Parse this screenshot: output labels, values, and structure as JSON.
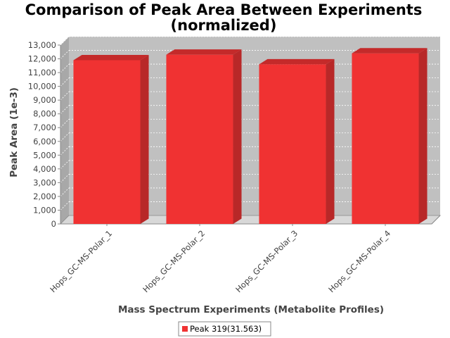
{
  "chart_data": {
    "type": "bar",
    "title": "Comparison of Peak Area Between Experiments",
    "subtitle": "(normalized)",
    "xlabel": "Mass Spectrum Experiments (Metabolite Profiles)",
    "ylabel": "Peak Area (1e-3)",
    "categories": [
      "Hops_GC-MS-Polar_1",
      "Hops_GC-MS-Polar_2",
      "Hops_GC-MS-Polar_3",
      "Hops_GC-MS-Polar_4"
    ],
    "series": [
      {
        "name": "Peak 319(31.563)",
        "values": [
          11900,
          12300,
          11600,
          12400
        ],
        "color": "#f03232"
      }
    ],
    "ylim": [
      0,
      13000
    ],
    "yticks": [
      0,
      1000,
      2000,
      3000,
      4000,
      5000,
      6000,
      7000,
      8000,
      9000,
      10000,
      11000,
      12000,
      13000
    ],
    "ytick_labels": [
      "0",
      "1,000",
      "2,000",
      "3,000",
      "4,000",
      "5,000",
      "6,000",
      "7,000",
      "8,000",
      "9,000",
      "10,000",
      "11,000",
      "12,000",
      "13,000"
    ],
    "grid": true,
    "legend_position": "bottom-center",
    "colors": {
      "plot_background": "#c0c0c0",
      "bar": "#f03232",
      "bar_side": "#b82828",
      "bar_top": "#c42a2a"
    }
  }
}
